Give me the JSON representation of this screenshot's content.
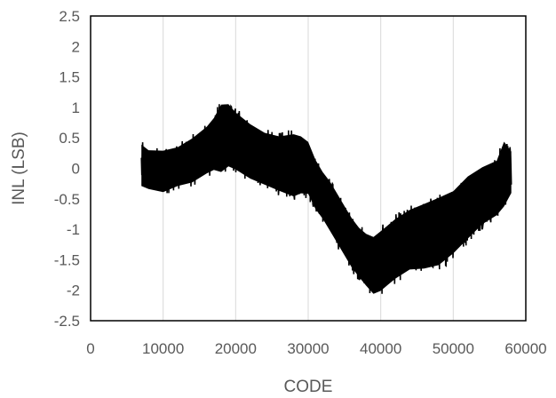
{
  "chart_data": {
    "type": "line",
    "title": "",
    "xlabel": "CODE",
    "ylabel": "INL (LSB)",
    "xlim": [
      0,
      60000
    ],
    "ylim": [
      -2.5,
      2.5
    ],
    "xticks": [
      0,
      10000,
      20000,
      30000,
      40000,
      50000,
      60000
    ],
    "xtick_labels": [
      "0",
      "10000",
      "20000",
      "30000",
      "40000",
      "50000",
      "60000"
    ],
    "yticks": [
      2.5,
      2,
      1.5,
      1,
      0.5,
      0,
      -0.5,
      -1,
      -1.5,
      -2,
      -2.5
    ],
    "ytick_labels": [
      "2.5",
      "2",
      "1.5",
      "1",
      "0.5",
      "0",
      "-0.5",
      "-1",
      "-1.5",
      "-2",
      "-2.5"
    ],
    "grid": {
      "vertical": true,
      "horizontal": false
    },
    "legend": "none",
    "line_color": "#000000",
    "series": [
      {
        "x": [
          7000,
          8000,
          10000,
          12000,
          14000,
          16000,
          17000,
          18000,
          19000,
          20000,
          22000,
          24000,
          26000,
          28000,
          29000,
          30000,
          31000,
          32000,
          33000,
          34000,
          35000,
          36000,
          37000,
          38000,
          39000,
          40000,
          41000,
          42000,
          44000,
          46000,
          48000,
          50000,
          52000,
          54000,
          56000,
          57000,
          58000
        ],
        "y_center": [
          0.05,
          0.0,
          -0.05,
          0.05,
          0.15,
          0.3,
          0.4,
          0.45,
          0.5,
          0.45,
          0.3,
          0.2,
          0.1,
          0.05,
          0.1,
          0.05,
          -0.2,
          -0.4,
          -0.6,
          -0.8,
          -1.0,
          -1.2,
          -1.4,
          -1.5,
          -1.55,
          -1.5,
          -1.4,
          -1.3,
          -1.15,
          -1.05,
          -0.95,
          -0.8,
          -0.6,
          -0.45,
          -0.3,
          -0.2,
          -0.15
        ],
        "y_max": [
          0.45,
          0.35,
          0.35,
          0.4,
          0.55,
          0.75,
          0.9,
          1.15,
          1.15,
          1.0,
          0.8,
          0.65,
          0.6,
          0.65,
          0.6,
          0.5,
          0.2,
          0.0,
          -0.15,
          -0.35,
          -0.55,
          -0.75,
          -0.9,
          -1.0,
          -1.05,
          -0.95,
          -0.85,
          -0.75,
          -0.6,
          -0.5,
          -0.4,
          -0.3,
          -0.05,
          0.1,
          0.2,
          0.55,
          0.35
        ],
        "y_min": [
          -0.35,
          -0.4,
          -0.45,
          -0.35,
          -0.3,
          -0.15,
          -0.1,
          -0.15,
          -0.05,
          -0.1,
          -0.25,
          -0.35,
          -0.45,
          -0.55,
          -0.5,
          -0.5,
          -0.75,
          -0.9,
          -1.1,
          -1.3,
          -1.5,
          -1.7,
          -1.85,
          -2.0,
          -2.15,
          -2.1,
          -2.0,
          -1.9,
          -1.75,
          -1.75,
          -1.7,
          -1.5,
          -1.25,
          -1.0,
          -0.85,
          -0.7,
          -0.45
        ]
      }
    ]
  }
}
